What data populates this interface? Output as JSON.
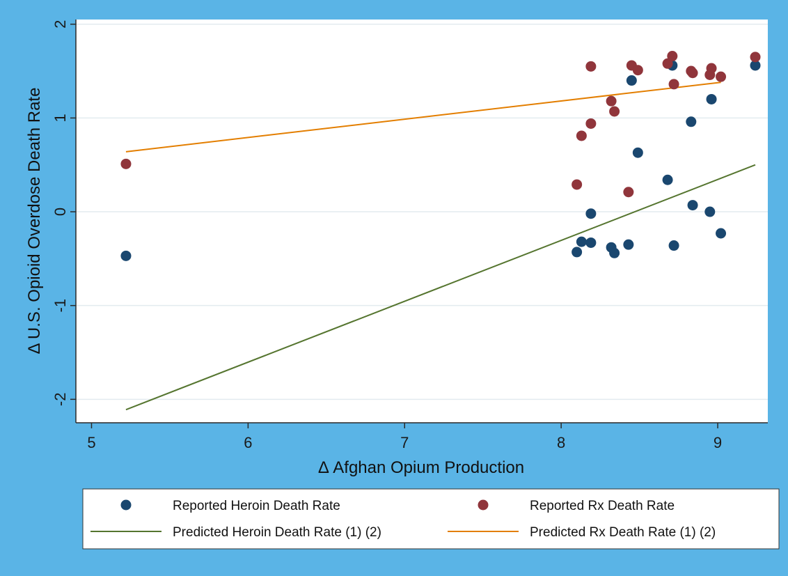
{
  "chart_data": {
    "type": "scatter",
    "title": "",
    "xlabel": "Δ Afghan Opium Production",
    "ylabel": "Δ U.S. Opioid Overdose Death Rate",
    "xlim": [
      4.9,
      9.32
    ],
    "ylim": [
      -2.25,
      2.05
    ],
    "xticks": [
      5,
      6,
      7,
      8,
      9
    ],
    "yticks": [
      -2,
      -1,
      0,
      1,
      2
    ],
    "grid": true,
    "legend_position": "bottom",
    "series": [
      {
        "name": "Reported Heroin Death Rate",
        "kind": "scatter",
        "color": "#1a476f",
        "points": [
          [
            5.22,
            -0.47
          ],
          [
            8.1,
            -0.43
          ],
          [
            8.13,
            -0.32
          ],
          [
            8.19,
            -0.02
          ],
          [
            8.19,
            -0.33
          ],
          [
            8.32,
            -0.38
          ],
          [
            8.34,
            -0.44
          ],
          [
            8.43,
            -0.35
          ],
          [
            8.45,
            1.4
          ],
          [
            8.49,
            0.63
          ],
          [
            8.68,
            0.34
          ],
          [
            8.71,
            1.56
          ],
          [
            8.72,
            -0.36
          ],
          [
            8.83,
            0.96
          ],
          [
            8.84,
            0.07
          ],
          [
            8.95,
            0.0
          ],
          [
            8.96,
            1.2
          ],
          [
            9.02,
            -0.23
          ],
          [
            9.24,
            1.56
          ]
        ]
      },
      {
        "name": "Reported Rx Death Rate",
        "kind": "scatter",
        "color": "#90353b",
        "points": [
          [
            5.22,
            0.51
          ],
          [
            8.1,
            0.29
          ],
          [
            8.13,
            0.81
          ],
          [
            8.19,
            0.94
          ],
          [
            8.19,
            1.55
          ],
          [
            8.32,
            1.18
          ],
          [
            8.34,
            1.07
          ],
          [
            8.43,
            0.21
          ],
          [
            8.45,
            1.56
          ],
          [
            8.49,
            1.51
          ],
          [
            8.68,
            1.58
          ],
          [
            8.71,
            1.66
          ],
          [
            8.72,
            1.36
          ],
          [
            8.83,
            1.5
          ],
          [
            8.84,
            1.48
          ],
          [
            8.95,
            1.46
          ],
          [
            8.96,
            1.53
          ],
          [
            9.02,
            1.44
          ],
          [
            9.24,
            1.65
          ]
        ]
      },
      {
        "name": "Predicted Heroin Death Rate (1) (2)",
        "kind": "line",
        "color": "#55752f",
        "points": [
          [
            5.22,
            -2.11
          ],
          [
            9.24,
            0.5
          ]
        ]
      },
      {
        "name": "Predicted Rx Death Rate (1) (2)",
        "kind": "line",
        "color": "#e37e00",
        "points": [
          [
            5.22,
            0.64
          ],
          [
            9.02,
            1.38
          ]
        ]
      }
    ],
    "legend": [
      {
        "label": "Reported Heroin Death Rate",
        "symbol": "dot",
        "color": "#1a476f"
      },
      {
        "label": "Reported Rx Death Rate",
        "symbol": "dot",
        "color": "#90353b"
      },
      {
        "label": "Predicted Heroin Death Rate (1) (2)",
        "symbol": "line",
        "color": "#55752f"
      },
      {
        "label": "Predicted Rx Death Rate (1) (2)",
        "symbol": "line",
        "color": "#e37e00"
      }
    ]
  },
  "colors": {
    "frame_background": "#5ab4e6",
    "plot_background": "#ffffff",
    "gridline": "#e3ebef",
    "axis": "#2a2a2a"
  }
}
